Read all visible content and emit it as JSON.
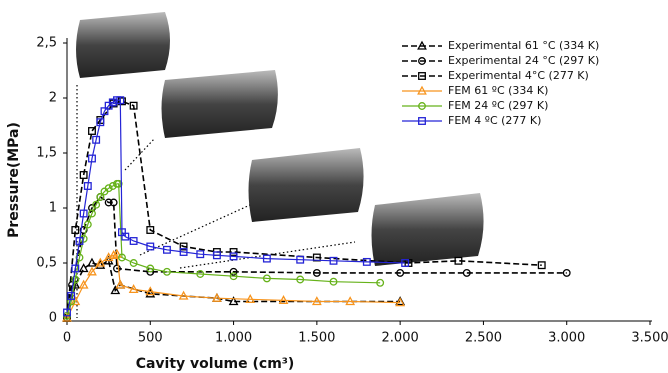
{
  "chart_data": {
    "type": "line",
    "xlabel": "Cavity volume (cm³)",
    "ylabel": "Pressure(MPa)",
    "xlim": [
      0,
      3500
    ],
    "ylim": [
      0,
      2.5
    ],
    "xticks": [
      0,
      500,
      {
        "value": 1000,
        "label": "1.000"
      },
      {
        "value": 1500,
        "label": "1.500"
      },
      {
        "value": 2000,
        "label": "2.000"
      },
      {
        "value": 2500,
        "label": "2.500"
      },
      {
        "value": 3000,
        "label": "3.000"
      },
      {
        "value": 3500,
        "label": "3.500"
      }
    ],
    "yticks": [
      0,
      {
        "value": 0.5,
        "label": "0,5"
      },
      1,
      {
        "value": 1.5,
        "label": "1,5"
      },
      2,
      {
        "value": 2.5,
        "label": "2,5"
      }
    ],
    "legend": "upper right",
    "series": [
      {
        "name": "Experimental 61 °C (334 K)",
        "color": "#000000",
        "marker": "triangle",
        "dashed": true,
        "x": [
          0,
          50,
          100,
          150,
          200,
          250,
          290,
          320,
          500,
          900,
          1000,
          2000
        ],
        "values": [
          0,
          0.3,
          0.45,
          0.5,
          0.48,
          0.52,
          0.25,
          0.3,
          0.22,
          0.18,
          0.15,
          0.15
        ]
      },
      {
        "name": "Experimental 24 °C (297 K)",
        "color": "#000000",
        "marker": "circle",
        "dashed": true,
        "x": [
          0,
          30,
          100,
          150,
          200,
          250,
          280,
          300,
          500,
          1000,
          1500,
          2000,
          2400,
          3000
        ],
        "values": [
          0,
          0.3,
          0.8,
          1.0,
          1.1,
          1.05,
          1.05,
          0.45,
          0.42,
          0.42,
          0.41,
          0.41,
          0.41,
          0.41
        ]
      },
      {
        "name": "Experimental 4°C (277 K)",
        "color": "#000000",
        "marker": "square",
        "dashed": true,
        "x": [
          0,
          50,
          100,
          150,
          200,
          280,
          330,
          400,
          500,
          700,
          900,
          1000,
          1500,
          2050,
          2350,
          2850
        ],
        "values": [
          0,
          0.8,
          1.3,
          1.7,
          1.8,
          1.95,
          1.97,
          1.93,
          0.8,
          0.65,
          0.6,
          0.6,
          0.55,
          0.5,
          0.52,
          0.48
        ]
      },
      {
        "name": "FEM 61 ºC (334 K)",
        "color": "#f7941d",
        "marker": "triangle",
        "dashed": false,
        "x": [
          0,
          50,
          100,
          150,
          200,
          250,
          280,
          300,
          320,
          400,
          500,
          700,
          900,
          1100,
          1300,
          1500,
          1700,
          2000
        ],
        "values": [
          0,
          0.15,
          0.3,
          0.42,
          0.5,
          0.55,
          0.57,
          0.58,
          0.3,
          0.26,
          0.24,
          0.2,
          0.18,
          0.17,
          0.16,
          0.15,
          0.15,
          0.14
        ]
      },
      {
        "name": "FEM 24 ºC (297 K)",
        "color": "#66b21a",
        "marker": "circle",
        "dashed": false,
        "x": [
          0,
          25,
          50,
          75,
          100,
          125,
          150,
          175,
          200,
          225,
          250,
          275,
          300,
          310,
          330,
          400,
          500,
          600,
          800,
          1000,
          1200,
          1400,
          1600,
          1880
        ],
        "values": [
          0.02,
          0.15,
          0.35,
          0.55,
          0.72,
          0.85,
          0.95,
          1.03,
          1.1,
          1.15,
          1.18,
          1.2,
          1.22,
          1.22,
          0.55,
          0.5,
          0.45,
          0.42,
          0.4,
          0.38,
          0.36,
          0.35,
          0.33,
          0.32
        ]
      },
      {
        "name": "FEM 4 ºC (277 K)",
        "color": "#2424d6",
        "marker": "square",
        "dashed": false,
        "x": [
          0,
          25,
          50,
          75,
          100,
          125,
          150,
          175,
          200,
          225,
          250,
          275,
          300,
          320,
          330,
          350,
          400,
          500,
          600,
          700,
          800,
          900,
          1000,
          1200,
          1400,
          1600,
          1800,
          2030
        ],
        "values": [
          0.05,
          0.2,
          0.45,
          0.7,
          0.95,
          1.2,
          1.45,
          1.62,
          1.78,
          1.88,
          1.93,
          1.96,
          1.98,
          1.98,
          0.78,
          0.74,
          0.7,
          0.65,
          0.62,
          0.6,
          0.58,
          0.57,
          0.56,
          0.54,
          0.53,
          0.52,
          0.51,
          0.5
        ]
      }
    ]
  }
}
